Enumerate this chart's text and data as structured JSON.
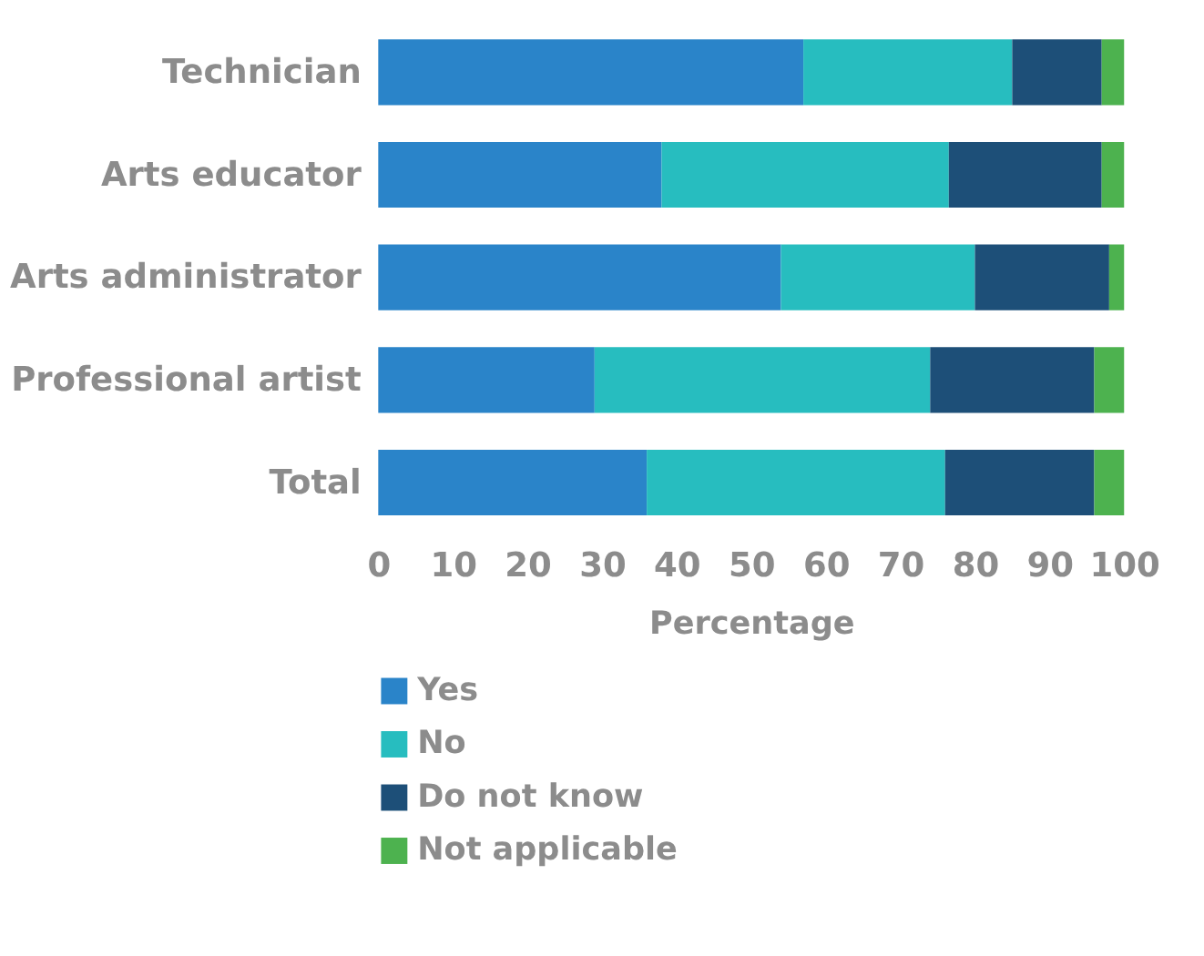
{
  "chart_data": {
    "type": "bar",
    "orientation": "horizontal",
    "stacked": true,
    "xlabel": "Percentage",
    "categories": [
      "Technician",
      "Arts educator",
      "Arts administrator",
      "Professional artist",
      "Total"
    ],
    "series": [
      {
        "name": "Yes",
        "color": "#2a84c9",
        "values": [
          57,
          38,
          54,
          29,
          36
        ]
      },
      {
        "name": "No",
        "color": "#27bdbf",
        "values": [
          28,
          38.5,
          26,
          45,
          40
        ]
      },
      {
        "name": "Do not know",
        "color": "#1d4f78",
        "values": [
          12,
          20.5,
          18,
          22,
          20
        ]
      },
      {
        "name": "Not applicable",
        "color": "#4db24f",
        "values": [
          3,
          3,
          2,
          4,
          4
        ]
      }
    ],
    "xlim": [
      0,
      100
    ],
    "xticks": [
      0,
      10,
      20,
      30,
      40,
      50,
      60,
      70,
      80,
      90,
      100
    ],
    "grid": false,
    "legend": "bottom"
  }
}
